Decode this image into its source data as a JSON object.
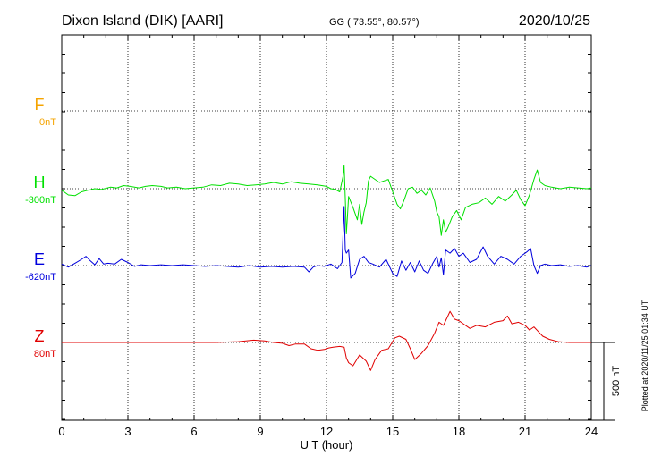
{
  "header": {
    "station": "Dixon Island (DIK)  [AARI]",
    "coords": "GG ( 73.55°,  80.57°)",
    "date": "2020/10/25"
  },
  "footer": {
    "plotted": "Plotted at 2020/11/25 01:34 UT",
    "scale_label": "500 nT"
  },
  "chart_data": {
    "type": "line",
    "xlabel": "U T (hour)",
    "xlim": [
      0,
      24
    ],
    "xticks": [
      "0",
      "3",
      "6",
      "9",
      "12",
      "15",
      "18",
      "21",
      "24"
    ],
    "unit_scale_nT": 500,
    "grid": true,
    "series": [
      {
        "name": "F",
        "baseline_label": "0nT",
        "color": "#f5a400",
        "points": []
      },
      {
        "name": "H",
        "baseline_label": "-300nT",
        "color": "#00e000",
        "points": [
          [
            0.0,
            -10
          ],
          [
            0.3,
            -40
          ],
          [
            0.6,
            -45
          ],
          [
            0.9,
            -20
          ],
          [
            1.2,
            -10
          ],
          [
            1.5,
            0
          ],
          [
            1.8,
            -5
          ],
          [
            2.2,
            10
          ],
          [
            2.5,
            5
          ],
          [
            2.8,
            20
          ],
          [
            3.1,
            15
          ],
          [
            3.5,
            5
          ],
          [
            3.8,
            15
          ],
          [
            4.1,
            20
          ],
          [
            4.5,
            15
          ],
          [
            4.8,
            5
          ],
          [
            5.2,
            10
          ],
          [
            5.6,
            0
          ],
          [
            6.0,
            5
          ],
          [
            6.4,
            10
          ],
          [
            6.8,
            25
          ],
          [
            7.2,
            20
          ],
          [
            7.6,
            35
          ],
          [
            8.0,
            30
          ],
          [
            8.4,
            20
          ],
          [
            8.8,
            25
          ],
          [
            9.2,
            30
          ],
          [
            9.6,
            40
          ],
          [
            10.0,
            30
          ],
          [
            10.4,
            45
          ],
          [
            10.8,
            35
          ],
          [
            11.2,
            30
          ],
          [
            11.6,
            25
          ],
          [
            12.0,
            15
          ],
          [
            12.2,
            0
          ],
          [
            12.4,
            -5
          ],
          [
            12.6,
            -20
          ],
          [
            12.75,
            80
          ],
          [
            12.8,
            150
          ],
          [
            12.85,
            -60
          ],
          [
            12.9,
            -290
          ],
          [
            12.95,
            -180
          ],
          [
            13.0,
            -50
          ],
          [
            13.2,
            -120
          ],
          [
            13.4,
            -200
          ],
          [
            13.5,
            -100
          ],
          [
            13.6,
            -230
          ],
          [
            13.7,
            -150
          ],
          [
            13.8,
            -90
          ],
          [
            13.9,
            50
          ],
          [
            14.0,
            80
          ],
          [
            14.2,
            60
          ],
          [
            14.4,
            40
          ],
          [
            14.6,
            50
          ],
          [
            14.8,
            60
          ],
          [
            15.0,
            -20
          ],
          [
            15.2,
            -100
          ],
          [
            15.35,
            -130
          ],
          [
            15.5,
            -80
          ],
          [
            15.7,
            0
          ],
          [
            15.9,
            10
          ],
          [
            16.1,
            -30
          ],
          [
            16.3,
            -10
          ],
          [
            16.5,
            -40
          ],
          [
            16.7,
            5
          ],
          [
            16.9,
            -80
          ],
          [
            17.0,
            -150
          ],
          [
            17.1,
            -180
          ],
          [
            17.2,
            -300
          ],
          [
            17.3,
            -200
          ],
          [
            17.4,
            -280
          ],
          [
            17.5,
            -250
          ],
          [
            17.7,
            -180
          ],
          [
            17.9,
            -140
          ],
          [
            18.1,
            -200
          ],
          [
            18.3,
            -120
          ],
          [
            18.6,
            -100
          ],
          [
            18.9,
            -90
          ],
          [
            19.2,
            -60
          ],
          [
            19.5,
            -100
          ],
          [
            19.8,
            -50
          ],
          [
            20.1,
            -80
          ],
          [
            20.4,
            -40
          ],
          [
            20.6,
            -10
          ],
          [
            20.8,
            -70
          ],
          [
            21.0,
            -110
          ],
          [
            21.2,
            -40
          ],
          [
            21.4,
            60
          ],
          [
            21.55,
            120
          ],
          [
            21.7,
            40
          ],
          [
            21.9,
            20
          ],
          [
            22.2,
            10
          ],
          [
            22.6,
            0
          ],
          [
            23.0,
            10
          ],
          [
            23.4,
            5
          ],
          [
            23.8,
            0
          ],
          [
            24.0,
            5
          ]
        ]
      },
      {
        "name": "E",
        "baseline_label": "-620nT",
        "color": "#0000dd",
        "points": [
          [
            0.0,
            10
          ],
          [
            0.3,
            -10
          ],
          [
            0.6,
            15
          ],
          [
            0.9,
            40
          ],
          [
            1.1,
            60
          ],
          [
            1.3,
            30
          ],
          [
            1.5,
            5
          ],
          [
            1.7,
            45
          ],
          [
            1.9,
            10
          ],
          [
            2.1,
            15
          ],
          [
            2.4,
            10
          ],
          [
            2.7,
            40
          ],
          [
            3.0,
            20
          ],
          [
            3.3,
            -5
          ],
          [
            3.6,
            5
          ],
          [
            4.0,
            0
          ],
          [
            4.5,
            5
          ],
          [
            5.0,
            0
          ],
          [
            5.5,
            5
          ],
          [
            6.0,
            0
          ],
          [
            6.5,
            -5
          ],
          [
            7.0,
            0
          ],
          [
            7.5,
            -5
          ],
          [
            8.0,
            -10
          ],
          [
            8.5,
            0
          ],
          [
            9.0,
            -10
          ],
          [
            9.5,
            -5
          ],
          [
            10.0,
            -10
          ],
          [
            10.5,
            -5
          ],
          [
            11.0,
            -10
          ],
          [
            11.2,
            -40
          ],
          [
            11.4,
            -10
          ],
          [
            11.6,
            0
          ],
          [
            11.9,
            -5
          ],
          [
            12.2,
            10
          ],
          [
            12.5,
            -20
          ],
          [
            12.7,
            20
          ],
          [
            12.8,
            380
          ],
          [
            12.85,
            100
          ],
          [
            12.9,
            80
          ],
          [
            13.0,
            100
          ],
          [
            13.1,
            -80
          ],
          [
            13.3,
            -50
          ],
          [
            13.5,
            40
          ],
          [
            13.7,
            60
          ],
          [
            13.9,
            20
          ],
          [
            14.1,
            10
          ],
          [
            14.4,
            -10
          ],
          [
            14.7,
            40
          ],
          [
            15.0,
            -50
          ],
          [
            15.2,
            -70
          ],
          [
            15.4,
            30
          ],
          [
            15.6,
            -30
          ],
          [
            15.8,
            20
          ],
          [
            16.0,
            -40
          ],
          [
            16.2,
            30
          ],
          [
            16.4,
            -30
          ],
          [
            16.6,
            -50
          ],
          [
            16.8,
            10
          ],
          [
            17.0,
            60
          ],
          [
            17.1,
            -10
          ],
          [
            17.2,
            50
          ],
          [
            17.3,
            -60
          ],
          [
            17.4,
            100
          ],
          [
            17.6,
            80
          ],
          [
            17.8,
            110
          ],
          [
            18.0,
            60
          ],
          [
            18.2,
            80
          ],
          [
            18.5,
            20
          ],
          [
            18.8,
            40
          ],
          [
            19.1,
            120
          ],
          [
            19.3,
            60
          ],
          [
            19.6,
            10
          ],
          [
            19.9,
            60
          ],
          [
            20.2,
            40
          ],
          [
            20.5,
            10
          ],
          [
            20.8,
            60
          ],
          [
            21.1,
            90
          ],
          [
            21.25,
            110
          ],
          [
            21.4,
            0
          ],
          [
            21.55,
            -50
          ],
          [
            21.7,
            0
          ],
          [
            21.9,
            10
          ],
          [
            22.2,
            0
          ],
          [
            22.6,
            5
          ],
          [
            23.0,
            -5
          ],
          [
            23.4,
            0
          ],
          [
            23.8,
            -10
          ],
          [
            24.0,
            0
          ]
        ]
      },
      {
        "name": "Z",
        "baseline_label": "80nT",
        "color": "#e00000",
        "points": [
          [
            0.0,
            0
          ],
          [
            1.0,
            0
          ],
          [
            2.0,
            0
          ],
          [
            3.0,
            0
          ],
          [
            4.0,
            0
          ],
          [
            5.0,
            0
          ],
          [
            6.0,
            0
          ],
          [
            7.0,
            0
          ],
          [
            8.0,
            5
          ],
          [
            8.7,
            15
          ],
          [
            9.2,
            10
          ],
          [
            9.6,
            0
          ],
          [
            10.0,
            -5
          ],
          [
            10.3,
            -20
          ],
          [
            10.6,
            -10
          ],
          [
            11.0,
            -10
          ],
          [
            11.3,
            -40
          ],
          [
            11.6,
            -50
          ],
          [
            11.9,
            -45
          ],
          [
            12.1,
            -35
          ],
          [
            12.3,
            -30
          ],
          [
            12.6,
            -25
          ],
          [
            12.8,
            -30
          ],
          [
            12.9,
            -100
          ],
          [
            13.0,
            -130
          ],
          [
            13.2,
            -150
          ],
          [
            13.5,
            -80
          ],
          [
            13.8,
            -120
          ],
          [
            14.0,
            -180
          ],
          [
            14.2,
            -110
          ],
          [
            14.5,
            -50
          ],
          [
            14.8,
            -40
          ],
          [
            15.1,
            30
          ],
          [
            15.3,
            40
          ],
          [
            15.6,
            20
          ],
          [
            15.8,
            -40
          ],
          [
            16.0,
            -110
          ],
          [
            16.3,
            -70
          ],
          [
            16.6,
            -20
          ],
          [
            16.9,
            60
          ],
          [
            17.1,
            130
          ],
          [
            17.3,
            110
          ],
          [
            17.5,
            170
          ],
          [
            17.6,
            200
          ],
          [
            17.8,
            150
          ],
          [
            18.0,
            140
          ],
          [
            18.2,
            120
          ],
          [
            18.5,
            90
          ],
          [
            18.8,
            110
          ],
          [
            19.2,
            100
          ],
          [
            19.6,
            130
          ],
          [
            20.0,
            140
          ],
          [
            20.2,
            170
          ],
          [
            20.4,
            120
          ],
          [
            20.7,
            130
          ],
          [
            21.0,
            110
          ],
          [
            21.2,
            80
          ],
          [
            21.4,
            100
          ],
          [
            21.6,
            70
          ],
          [
            21.8,
            40
          ],
          [
            22.1,
            20
          ],
          [
            22.5,
            5
          ],
          [
            23.0,
            0
          ],
          [
            24.0,
            0
          ]
        ]
      }
    ]
  }
}
